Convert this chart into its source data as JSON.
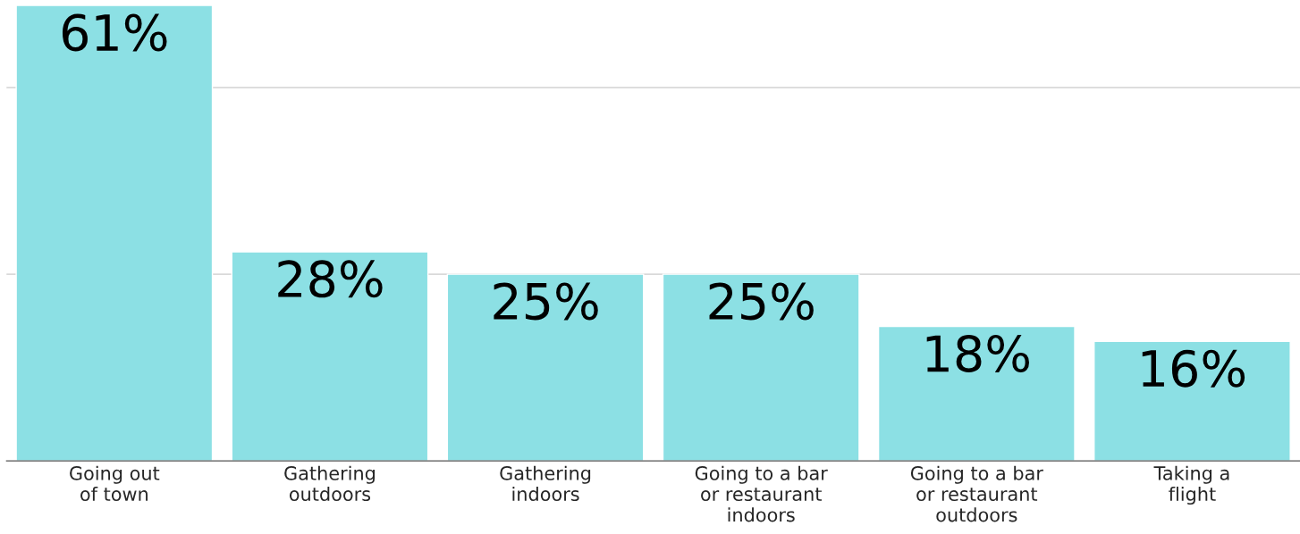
{
  "chart_data": {
    "type": "bar",
    "categories": [
      "Going out\nof town",
      "Gathering\noutdoors",
      "Gathering\nindoors",
      "Going to a bar\nor restaurant\nindoors",
      "Going to a bar\nor restaurant\noutdoors",
      "Taking a\nflight"
    ],
    "values": [
      61,
      28,
      25,
      25,
      18,
      16
    ],
    "value_labels": [
      "61%",
      "28%",
      "25%",
      "25%",
      "18%",
      "16%"
    ],
    "color": "#8ce0e4",
    "ref_lines": [
      {
        "axis": "y",
        "value": 25,
        "color": "#d9d9d9"
      },
      {
        "axis": "y",
        "value": 50,
        "color": "#d9d9d9"
      }
    ],
    "tick_labels": "x"
  }
}
